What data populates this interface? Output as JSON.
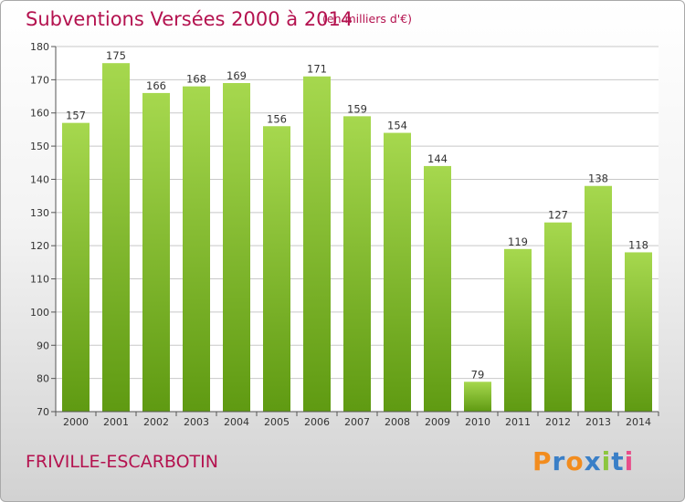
{
  "header": {
    "title": "Subventions Versées 2000 à 2014",
    "unit": "(en milliers d'€)"
  },
  "footer": {
    "place": "FRIVILLE-ESCARBOTIN",
    "logo": "Proxiti"
  },
  "colors": {
    "title": "#b4124f",
    "bar_light": "#a6d84e",
    "bar_dark": "#5f9a12",
    "grid": "#c8c8c8",
    "logo_letters": [
      "#f28c1e",
      "#3a7fc7",
      "#f28c1e",
      "#3a7fc7",
      "#8cc63f",
      "#3a7fc7",
      "#e84e8a"
    ]
  },
  "chart_data": {
    "type": "bar",
    "categories": [
      "2000",
      "2001",
      "2002",
      "2003",
      "2004",
      "2005",
      "2006",
      "2007",
      "2008",
      "2009",
      "2010",
      "2011",
      "2012",
      "2013",
      "2014"
    ],
    "values": [
      157,
      175,
      166,
      168,
      169,
      156,
      171,
      159,
      154,
      144,
      79,
      119,
      127,
      138,
      118
    ],
    "title": "Subventions Versées 2000 à 2014",
    "subtitle": "(en milliers d'€)",
    "xlabel": "",
    "ylabel": "",
    "ylim": [
      70,
      180
    ],
    "yticks": [
      70,
      80,
      90,
      100,
      110,
      120,
      130,
      140,
      150,
      160,
      170,
      180
    ],
    "grid": true,
    "data_labels": true
  }
}
